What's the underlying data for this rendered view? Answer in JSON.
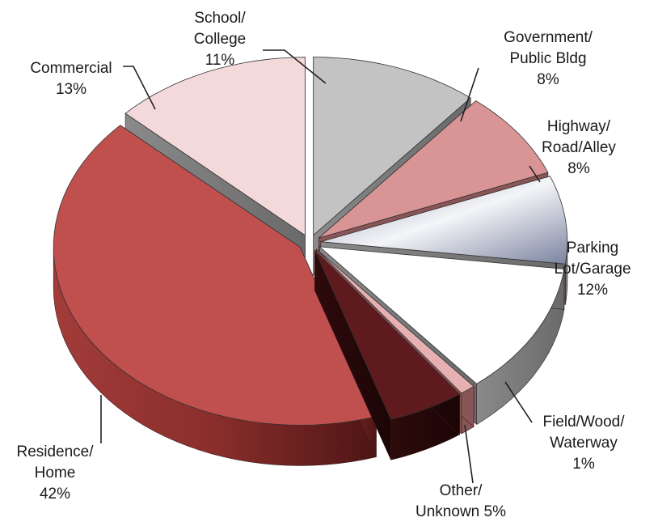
{
  "chart_data": {
    "type": "pie",
    "title": "",
    "style": "3d-exploded",
    "slices": [
      {
        "label_lines": [
          "School/",
          "College",
          "11%"
        ],
        "value": 11,
        "color": "#c3c3c3"
      },
      {
        "label_lines": [
          "Government/",
          "Public Bldg",
          "8%"
        ],
        "value": 8,
        "color": "#d99596"
      },
      {
        "label_lines": [
          "Highway/",
          "Road/Alley",
          "8%"
        ],
        "value": 8,
        "color": "#b9bfcf"
      },
      {
        "label_lines": [
          "Parking",
          "Lot/Garage",
          "12%"
        ],
        "value": 12,
        "color": "#ffffff"
      },
      {
        "label_lines": [
          "Field/Wood/",
          "Waterway",
          "1%"
        ],
        "value": 1,
        "color": "#e6b0b2"
      },
      {
        "label_lines": [
          "Other/",
          "Unknown 5%"
        ],
        "value": 5,
        "color": "#5e1a1c"
      },
      {
        "label_lines": [
          "Residence/",
          "Home",
          "42%"
        ],
        "value": 42,
        "color": "#c0504d"
      },
      {
        "label_lines": [
          "Commercial",
          "13%"
        ],
        "value": 13,
        "color": "#f3d9d9"
      }
    ]
  }
}
